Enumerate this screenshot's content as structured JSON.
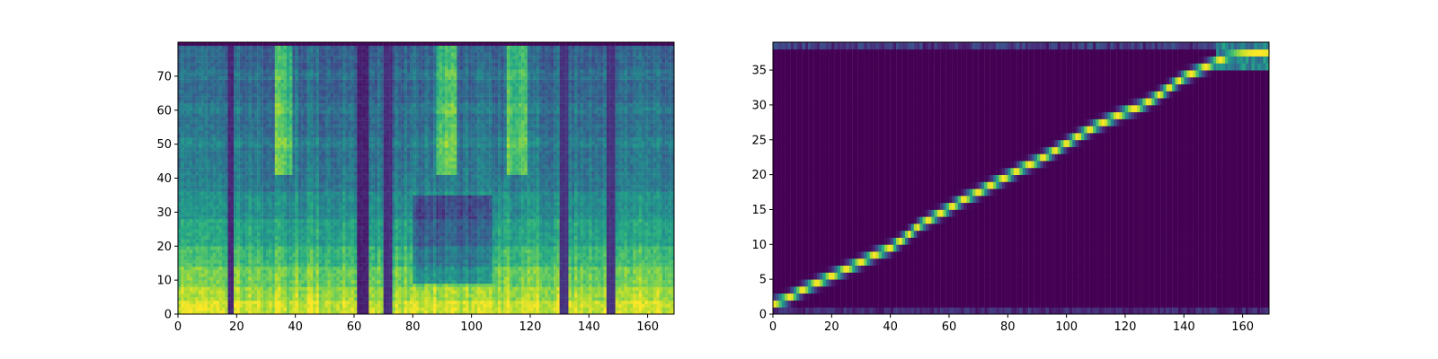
{
  "figure": {
    "background": "#ffffff"
  },
  "colormap": [
    "#440154",
    "#472d7b",
    "#3b528b",
    "#2c728e",
    "#21918c",
    "#28ae80",
    "#5ec962",
    "#addc30",
    "#fde725"
  ],
  "chart_data": [
    {
      "type": "heatmap",
      "title": "",
      "xlabel": "",
      "ylabel": "",
      "xlim": [
        0,
        169
      ],
      "ylim": [
        0,
        80
      ],
      "origin": "lower",
      "xticks": [
        0,
        20,
        40,
        60,
        80,
        100,
        120,
        140,
        160
      ],
      "yticks": [
        0,
        10,
        20,
        30,
        40,
        50,
        60,
        70
      ],
      "cols": 169,
      "rows": 80,
      "silence_frames": [
        [
          16.5,
          18.5,
          0.08
        ],
        [
          61.0,
          64.0,
          0.06
        ],
        [
          70.0,
          72.0,
          0.1
        ],
        [
          130.0,
          132.0,
          0.12
        ],
        [
          146.0,
          148.0,
          0.12
        ]
      ],
      "upper_bright_frames": [
        [
          33,
          38,
          0.35
        ],
        [
          88,
          94,
          0.35
        ],
        [
          112,
          118,
          0.35
        ]
      ],
      "mid_dark_frames": [
        [
          80,
          106,
          0.28
        ]
      ],
      "energy_bands": [
        3,
        7,
        12,
        18,
        24,
        30
      ],
      "horizontal_band_rows": [
        50,
        60,
        70
      ]
    },
    {
      "type": "heatmap",
      "title": "",
      "xlabel": "",
      "ylabel": "",
      "xlim": [
        0,
        169
      ],
      "ylim": [
        0,
        39
      ],
      "origin": "lower",
      "xticks": [
        0,
        20,
        40,
        60,
        80,
        100,
        120,
        140,
        160
      ],
      "yticks": [
        0,
        5,
        10,
        15,
        20,
        25,
        30,
        35
      ],
      "cols": 169,
      "rows": 39,
      "alignment_path": [
        [
          0,
          1.5
        ],
        [
          5,
          2.3
        ],
        [
          10,
          3.5
        ],
        [
          15,
          4.5
        ],
        [
          20,
          5.5
        ],
        [
          25,
          6.5
        ],
        [
          30,
          7.5
        ],
        [
          35,
          8.6
        ],
        [
          40,
          9.5
        ],
        [
          45,
          11
        ],
        [
          50,
          12.8
        ],
        [
          55,
          14
        ],
        [
          60,
          15.2
        ],
        [
          65,
          16.5
        ],
        [
          70,
          17.5
        ],
        [
          75,
          18.7
        ],
        [
          80,
          19.8
        ],
        [
          85,
          21
        ],
        [
          90,
          22
        ],
        [
          95,
          23.2
        ],
        [
          100,
          24.5
        ],
        [
          105,
          25.8
        ],
        [
          110,
          27
        ],
        [
          115,
          28
        ],
        [
          120,
          29
        ],
        [
          125,
          29.8
        ],
        [
          130,
          31
        ],
        [
          135,
          32.5
        ],
        [
          140,
          34
        ],
        [
          145,
          35
        ],
        [
          150,
          36
        ],
        [
          155,
          37
        ],
        [
          160,
          37.3
        ],
        [
          168,
          37.6
        ]
      ],
      "top_noise_row": 38,
      "bottom_noise_row": 0
    }
  ]
}
